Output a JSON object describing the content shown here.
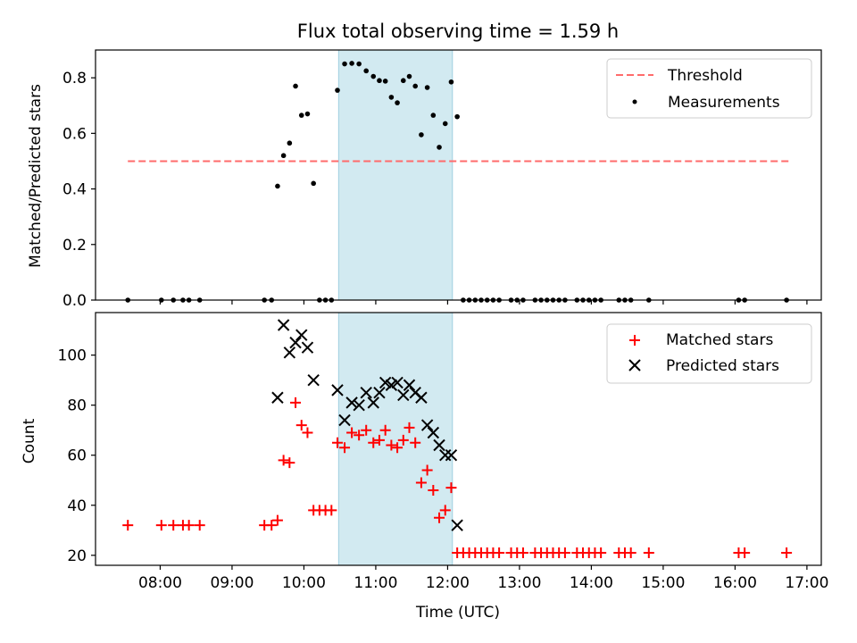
{
  "chart_data": [
    {
      "type": "scatter",
      "title": "Flux total observing time = 1.59 h",
      "xlabel": "",
      "ylabel": "Matched/Predicted stars",
      "ylim": [
        0,
        0.9
      ],
      "xlim": [
        "07:06",
        "17:12"
      ],
      "yticks": [
        "0.0",
        "0.2",
        "0.4",
        "0.6",
        "0.8"
      ],
      "highlight_span": {
        "start": "10:29",
        "end": "12:04",
        "color": "#add8e6"
      },
      "legend_position": "top-right",
      "threshold": {
        "name": "Threshold",
        "value": 0.5,
        "x_start": "07:33",
        "x_end": "16:45",
        "color": "#ff6b6b"
      },
      "series": [
        {
          "name": "Measurements",
          "color": "#000000",
          "points": [
            [
              "07:33",
              0
            ],
            [
              "08:01",
              0
            ],
            [
              "08:11",
              0
            ],
            [
              "08:19",
              0
            ],
            [
              "08:24",
              0
            ],
            [
              "08:33",
              0
            ],
            [
              "09:27",
              0
            ],
            [
              "09:33",
              0
            ],
            [
              "09:38",
              0.41
            ],
            [
              "09:43",
              0.52
            ],
            [
              "09:48",
              0.565
            ],
            [
              "09:53",
              0.77
            ],
            [
              "09:58",
              0.665
            ],
            [
              "10:03",
              0.67
            ],
            [
              "10:08",
              0.42
            ],
            [
              "10:13",
              0
            ],
            [
              "10:18",
              0
            ],
            [
              "10:23",
              0
            ],
            [
              "10:28",
              0.755
            ],
            [
              "10:34",
              0.85
            ],
            [
              "10:40",
              0.852
            ],
            [
              "10:46",
              0.85
            ],
            [
              "10:52",
              0.825
            ],
            [
              "10:58",
              0.805
            ],
            [
              "11:03",
              0.79
            ],
            [
              "11:08",
              0.788
            ],
            [
              "11:13",
              0.73
            ],
            [
              "11:18",
              0.71
            ],
            [
              "11:23",
              0.79
            ],
            [
              "11:28",
              0.805
            ],
            [
              "11:33",
              0.77
            ],
            [
              "11:38",
              0.595
            ],
            [
              "11:43",
              0.765
            ],
            [
              "11:48",
              0.665
            ],
            [
              "11:53",
              0.55
            ],
            [
              "11:58",
              0.635
            ],
            [
              "12:03",
              0.785
            ],
            [
              "12:08",
              0.66
            ],
            [
              "12:13",
              0
            ],
            [
              "12:18",
              0
            ],
            [
              "12:23",
              0
            ],
            [
              "12:28",
              0
            ],
            [
              "12:33",
              0
            ],
            [
              "12:38",
              0
            ],
            [
              "12:43",
              0
            ],
            [
              "12:53",
              0
            ],
            [
              "12:58",
              0
            ],
            [
              "13:03",
              0
            ],
            [
              "13:13",
              0
            ],
            [
              "13:18",
              0
            ],
            [
              "13:23",
              0
            ],
            [
              "13:28",
              0
            ],
            [
              "13:33",
              0
            ],
            [
              "13:38",
              0
            ],
            [
              "13:48",
              0
            ],
            [
              "13:53",
              0
            ],
            [
              "13:58",
              0
            ],
            [
              "14:03",
              0
            ],
            [
              "14:08",
              0
            ],
            [
              "14:23",
              0
            ],
            [
              "14:28",
              0
            ],
            [
              "14:33",
              0
            ],
            [
              "14:48",
              0
            ],
            [
              "16:03",
              0
            ],
            [
              "16:08",
              0
            ],
            [
              "16:43",
              0
            ]
          ]
        }
      ]
    },
    {
      "type": "scatter",
      "title": "",
      "xlabel": "Time (UTC)",
      "ylabel": "Count",
      "ylim": [
        16,
        117
      ],
      "xlim": [
        "07:06",
        "17:12"
      ],
      "yticks": [
        "20",
        "40",
        "60",
        "80",
        "100"
      ],
      "xticks": [
        "08:00",
        "09:00",
        "10:00",
        "11:00",
        "12:00",
        "13:00",
        "14:00",
        "15:00",
        "16:00",
        "17:00"
      ],
      "highlight_span": {
        "start": "10:29",
        "end": "12:04",
        "color": "#add8e6"
      },
      "legend_position": "top-right",
      "series": [
        {
          "name": "Matched stars",
          "marker": "plus",
          "color": "#ff0000",
          "points": [
            [
              "07:33",
              32
            ],
            [
              "08:01",
              32
            ],
            [
              "08:11",
              32
            ],
            [
              "08:19",
              32
            ],
            [
              "08:24",
              32
            ],
            [
              "08:33",
              32
            ],
            [
              "09:27",
              32
            ],
            [
              "09:33",
              32
            ],
            [
              "09:38",
              34
            ],
            [
              "09:43",
              58
            ],
            [
              "09:48",
              57
            ],
            [
              "09:53",
              81
            ],
            [
              "09:58",
              72
            ],
            [
              "10:03",
              69
            ],
            [
              "10:08",
              38
            ],
            [
              "10:13",
              38
            ],
            [
              "10:18",
              38
            ],
            [
              "10:23",
              38
            ],
            [
              "10:28",
              65
            ],
            [
              "10:34",
              63
            ],
            [
              "10:40",
              69
            ],
            [
              "10:46",
              68
            ],
            [
              "10:52",
              70
            ],
            [
              "10:58",
              65
            ],
            [
              "11:03",
              66
            ],
            [
              "11:08",
              70
            ],
            [
              "11:13",
              64
            ],
            [
              "11:18",
              63
            ],
            [
              "11:23",
              66
            ],
            [
              "11:28",
              71
            ],
            [
              "11:33",
              65
            ],
            [
              "11:38",
              49
            ],
            [
              "11:43",
              54
            ],
            [
              "11:48",
              46
            ],
            [
              "11:53",
              35
            ],
            [
              "11:58",
              38
            ],
            [
              "12:03",
              47
            ],
            [
              "12:08",
              21
            ],
            [
              "12:13",
              21
            ],
            [
              "12:18",
              21
            ],
            [
              "12:23",
              21
            ],
            [
              "12:28",
              21
            ],
            [
              "12:33",
              21
            ],
            [
              "12:38",
              21
            ],
            [
              "12:43",
              21
            ],
            [
              "12:53",
              21
            ],
            [
              "12:58",
              21
            ],
            [
              "13:03",
              21
            ],
            [
              "13:13",
              21
            ],
            [
              "13:18",
              21
            ],
            [
              "13:23",
              21
            ],
            [
              "13:28",
              21
            ],
            [
              "13:33",
              21
            ],
            [
              "13:38",
              21
            ],
            [
              "13:48",
              21
            ],
            [
              "13:53",
              21
            ],
            [
              "13:58",
              21
            ],
            [
              "14:03",
              21
            ],
            [
              "14:08",
              21
            ],
            [
              "14:23",
              21
            ],
            [
              "14:28",
              21
            ],
            [
              "14:33",
              21
            ],
            [
              "14:48",
              21
            ],
            [
              "16:03",
              21
            ],
            [
              "16:08",
              21
            ],
            [
              "16:43",
              21
            ]
          ]
        },
        {
          "name": "Predicted stars",
          "marker": "x",
          "color": "#000000",
          "points": [
            [
              "09:38",
              83
            ],
            [
              "09:43",
              112
            ],
            [
              "09:48",
              101
            ],
            [
              "09:53",
              105
            ],
            [
              "09:58",
              108
            ],
            [
              "10:03",
              103
            ],
            [
              "10:08",
              90
            ],
            [
              "10:28",
              86
            ],
            [
              "10:34",
              74
            ],
            [
              "10:40",
              81
            ],
            [
              "10:46",
              80
            ],
            [
              "10:52",
              85
            ],
            [
              "10:58",
              81
            ],
            [
              "11:03",
              85
            ],
            [
              "11:08",
              89
            ],
            [
              "11:13",
              88
            ],
            [
              "11:18",
              89
            ],
            [
              "11:23",
              84
            ],
            [
              "11:28",
              88
            ],
            [
              "11:33",
              85
            ],
            [
              "11:38",
              83
            ],
            [
              "11:43",
              72
            ],
            [
              "11:48",
              69
            ],
            [
              "11:53",
              64
            ],
            [
              "11:58",
              60
            ],
            [
              "12:03",
              60
            ],
            [
              "12:08",
              32
            ]
          ]
        }
      ]
    }
  ]
}
